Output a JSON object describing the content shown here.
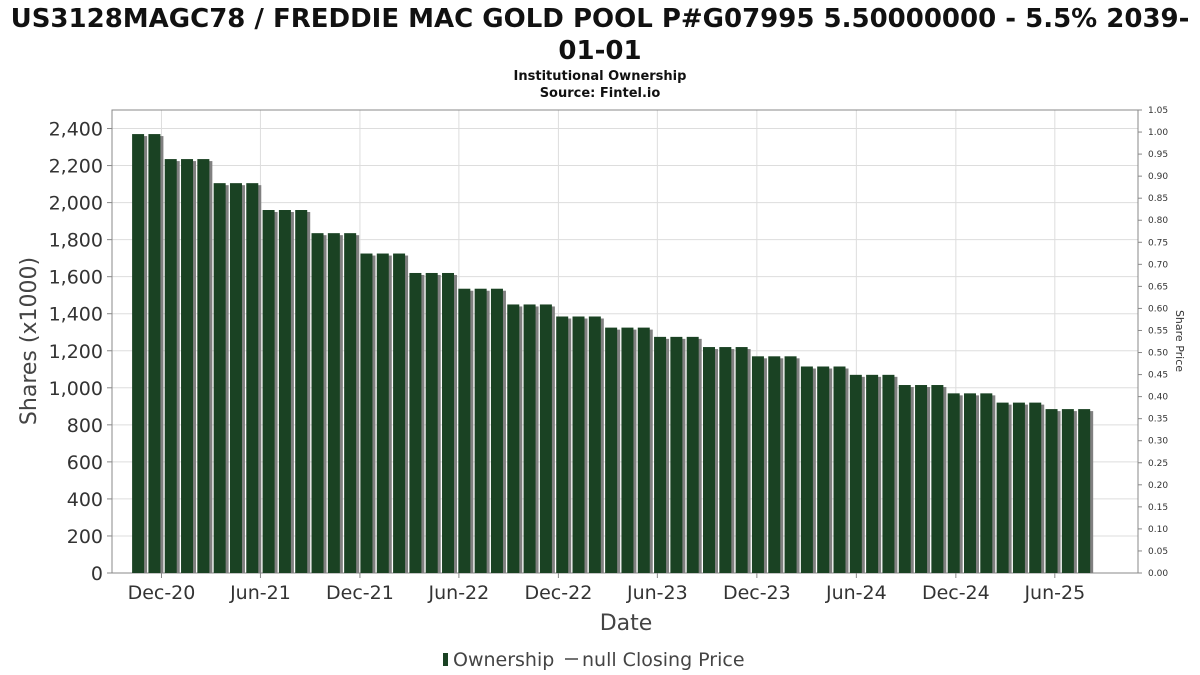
{
  "title_line1": "US3128MAGC78 / FREDDIE MAC GOLD POOL P#G07995 5.50000000 - 5.5% 2039-",
  "title_line2": "01-01",
  "subtitle_line1": "Institutional Ownership",
  "subtitle_line2": "Source: Fintel.io",
  "colors": {
    "bar": "#1a4223",
    "bar_shadow": "#808080",
    "grid": "#dddddd",
    "axis": "#888888",
    "background": "#ffffff"
  },
  "legend": {
    "ownership_label": "Ownership",
    "price_label": "null Closing Price"
  },
  "chart_data": {
    "type": "bar",
    "xlabel": "Date",
    "ylabel": "Shares (x1000)",
    "y2label": "Share Price",
    "ylim": [
      0,
      2500
    ],
    "y2lim": [
      0,
      1.05
    ],
    "yticks": [
      0,
      200,
      400,
      600,
      800,
      1000,
      1200,
      1400,
      1600,
      1800,
      2000,
      2200,
      2400
    ],
    "ytick_labels": [
      "0",
      "200",
      "400",
      "600",
      "800",
      "1,000",
      "1,200",
      "1,400",
      "1,600",
      "1,800",
      "2,000",
      "2,200",
      "2,400"
    ],
    "y2ticks": [
      "0.00",
      "0.05",
      "0.10",
      "0.15",
      "0.20",
      "0.25",
      "0.30",
      "0.35",
      "0.40",
      "0.45",
      "0.50",
      "0.55",
      "0.60",
      "0.65",
      "0.70",
      "0.75",
      "0.80",
      "0.85",
      "0.90",
      "0.95",
      "1.00",
      "1.05"
    ],
    "x_start": "2020-09-01",
    "x_end": "2025-11-01",
    "x_ticks": [
      {
        "date": "2020-12-01",
        "label": "Dec-20"
      },
      {
        "date": "2021-06-01",
        "label": "Jun-21"
      },
      {
        "date": "2021-12-01",
        "label": "Dec-21"
      },
      {
        "date": "2022-06-01",
        "label": "Jun-22"
      },
      {
        "date": "2022-12-01",
        "label": "Dec-22"
      },
      {
        "date": "2023-06-01",
        "label": "Jun-23"
      },
      {
        "date": "2023-12-01",
        "label": "Dec-23"
      },
      {
        "date": "2024-06-01",
        "label": "Jun-24"
      },
      {
        "date": "2024-12-01",
        "label": "Dec-24"
      },
      {
        "date": "2025-06-01",
        "label": "Jun-25"
      }
    ],
    "series": [
      {
        "name": "Ownership",
        "points": [
          {
            "x": "2020-10-19",
            "y": 2370
          },
          {
            "x": "2020-11-18",
            "y": 2370
          },
          {
            "x": "2020-12-18",
            "y": 2235
          },
          {
            "x": "2021-01-17",
            "y": 2235
          },
          {
            "x": "2021-02-16",
            "y": 2235
          },
          {
            "x": "2021-03-18",
            "y": 2105
          },
          {
            "x": "2021-04-17",
            "y": 2105
          },
          {
            "x": "2021-05-17",
            "y": 2105
          },
          {
            "x": "2021-06-16",
            "y": 1960
          },
          {
            "x": "2021-07-16",
            "y": 1960
          },
          {
            "x": "2021-08-15",
            "y": 1960
          },
          {
            "x": "2021-09-14",
            "y": 1835
          },
          {
            "x": "2021-10-14",
            "y": 1835
          },
          {
            "x": "2021-11-13",
            "y": 1835
          },
          {
            "x": "2021-12-13",
            "y": 1725
          },
          {
            "x": "2022-01-12",
            "y": 1725
          },
          {
            "x": "2022-02-11",
            "y": 1725
          },
          {
            "x": "2022-03-13",
            "y": 1620
          },
          {
            "x": "2022-04-12",
            "y": 1620
          },
          {
            "x": "2022-05-12",
            "y": 1620
          },
          {
            "x": "2022-06-11",
            "y": 1535
          },
          {
            "x": "2022-07-11",
            "y": 1535
          },
          {
            "x": "2022-08-10",
            "y": 1535
          },
          {
            "x": "2022-09-09",
            "y": 1450
          },
          {
            "x": "2022-10-09",
            "y": 1450
          },
          {
            "x": "2022-11-08",
            "y": 1450
          },
          {
            "x": "2022-12-08",
            "y": 1385
          },
          {
            "x": "2023-01-07",
            "y": 1385
          },
          {
            "x": "2023-02-06",
            "y": 1385
          },
          {
            "x": "2023-03-08",
            "y": 1325
          },
          {
            "x": "2023-04-07",
            "y": 1325
          },
          {
            "x": "2023-05-07",
            "y": 1325
          },
          {
            "x": "2023-06-06",
            "y": 1275
          },
          {
            "x": "2023-07-06",
            "y": 1275
          },
          {
            "x": "2023-08-05",
            "y": 1275
          },
          {
            "x": "2023-09-04",
            "y": 1220
          },
          {
            "x": "2023-10-04",
            "y": 1220
          },
          {
            "x": "2023-11-03",
            "y": 1220
          },
          {
            "x": "2023-12-03",
            "y": 1170
          },
          {
            "x": "2024-01-02",
            "y": 1170
          },
          {
            "x": "2024-02-01",
            "y": 1170
          },
          {
            "x": "2024-03-02",
            "y": 1115
          },
          {
            "x": "2024-04-01",
            "y": 1115
          },
          {
            "x": "2024-05-01",
            "y": 1115
          },
          {
            "x": "2024-05-31",
            "y": 1070
          },
          {
            "x": "2024-06-30",
            "y": 1070
          },
          {
            "x": "2024-07-30",
            "y": 1070
          },
          {
            "x": "2024-08-29",
            "y": 1015
          },
          {
            "x": "2024-09-28",
            "y": 1015
          },
          {
            "x": "2024-10-28",
            "y": 1015
          },
          {
            "x": "2024-11-27",
            "y": 970
          },
          {
            "x": "2024-12-27",
            "y": 970
          },
          {
            "x": "2025-01-26",
            "y": 970
          },
          {
            "x": "2025-02-25",
            "y": 920
          },
          {
            "x": "2025-03-27",
            "y": 920
          },
          {
            "x": "2025-04-26",
            "y": 920
          },
          {
            "x": "2025-05-26",
            "y": 885
          },
          {
            "x": "2025-06-25",
            "y": 885
          },
          {
            "x": "2025-07-25",
            "y": 885
          }
        ]
      }
    ],
    "grid": true,
    "legend_position": "bottom"
  }
}
